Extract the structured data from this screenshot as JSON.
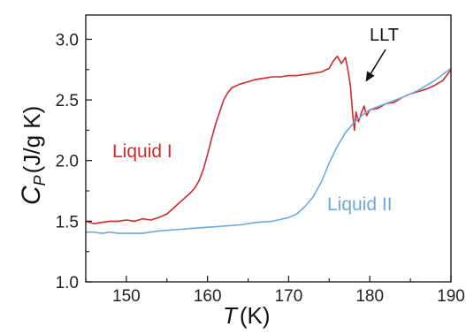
{
  "chart_data": {
    "type": "line",
    "xlabel": {
      "symbol": "T",
      "unit": "(K)"
    },
    "ylabel": {
      "symbol": "C",
      "subscript": "P",
      "unit": "(J/g K)"
    },
    "xlim": [
      145,
      190
    ],
    "ylim": [
      1.0,
      3.2
    ],
    "xticks": [
      150,
      160,
      170,
      180,
      190
    ],
    "yticks": [
      1.0,
      1.5,
      2.0,
      2.5,
      3.0
    ],
    "x_tick_labels": [
      "150",
      "160",
      "170",
      "180",
      "190"
    ],
    "y_tick_labels": [
      "1.0",
      "1.5",
      "2.0",
      "2.5",
      "3.0"
    ],
    "grid": false,
    "legend": "none",
    "series": [
      {
        "name": "Liquid I",
        "color": "#d42a2a",
        "x": [
          145,
          146,
          147,
          148,
          149,
          150,
          151,
          152,
          153,
          154,
          155,
          156,
          157,
          158,
          158.5,
          159,
          159.5,
          160,
          160.5,
          161,
          161.5,
          162,
          162.5,
          163,
          164,
          165,
          166,
          167,
          168,
          169,
          170,
          171,
          172,
          173,
          174,
          175,
          175.5,
          176,
          176.5,
          177,
          177.3,
          177.6,
          177.9,
          178.1,
          178.3,
          178.6,
          179,
          179.3,
          179.6,
          180,
          181,
          182,
          183,
          184,
          185,
          186,
          187,
          188,
          189,
          190
        ],
        "y": [
          1.5,
          1.48,
          1.49,
          1.5,
          1.5,
          1.51,
          1.5,
          1.52,
          1.51,
          1.53,
          1.56,
          1.62,
          1.68,
          1.74,
          1.78,
          1.84,
          1.93,
          2.05,
          2.18,
          2.3,
          2.4,
          2.5,
          2.56,
          2.6,
          2.63,
          2.65,
          2.67,
          2.68,
          2.69,
          2.69,
          2.7,
          2.7,
          2.71,
          2.72,
          2.73,
          2.76,
          2.82,
          2.86,
          2.8,
          2.85,
          2.75,
          2.62,
          2.38,
          2.25,
          2.4,
          2.32,
          2.4,
          2.45,
          2.37,
          2.42,
          2.43,
          2.47,
          2.48,
          2.52,
          2.55,
          2.57,
          2.59,
          2.62,
          2.66,
          2.75
        ]
      },
      {
        "name": "Liquid II",
        "color": "#6fa8dc",
        "x": [
          145,
          146,
          147,
          148,
          149,
          150,
          152,
          154,
          156,
          158,
          160,
          162,
          164,
          166,
          168,
          170,
          171,
          172,
          173,
          174,
          175,
          176,
          177,
          178,
          179,
          180,
          182,
          184,
          186,
          188,
          190
        ],
        "y": [
          1.41,
          1.41,
          1.4,
          1.41,
          1.4,
          1.4,
          1.4,
          1.42,
          1.43,
          1.44,
          1.45,
          1.46,
          1.47,
          1.49,
          1.5,
          1.53,
          1.56,
          1.62,
          1.7,
          1.82,
          1.98,
          2.12,
          2.23,
          2.31,
          2.37,
          2.42,
          2.47,
          2.52,
          2.58,
          2.66,
          2.76
        ]
      }
    ],
    "annotations": [
      {
        "text": "LLT",
        "arrow_to": {
          "x": 179.5,
          "y": 2.65
        }
      }
    ]
  }
}
